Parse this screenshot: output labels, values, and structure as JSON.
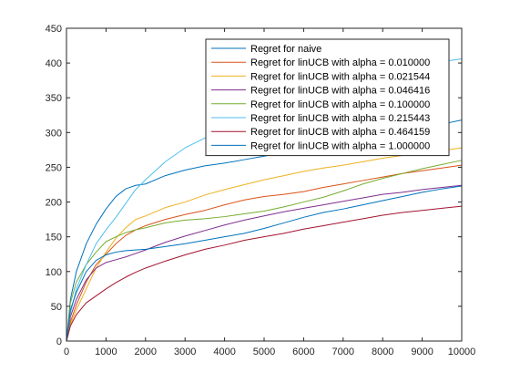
{
  "chart_data": {
    "type": "line",
    "title": "",
    "xlabel": "",
    "ylabel": "",
    "xlim": [
      0,
      10000
    ],
    "ylim": [
      0,
      450
    ],
    "xticks": [
      0,
      1000,
      2000,
      3000,
      4000,
      5000,
      6000,
      7000,
      8000,
      9000,
      10000
    ],
    "xtick_labels": [
      "0",
      "1000",
      "2000",
      "3000",
      "4000",
      "5000",
      "6000",
      "7000",
      "8000",
      "9000",
      "10000"
    ],
    "yticks": [
      0,
      50,
      100,
      150,
      200,
      250,
      300,
      350,
      400,
      450
    ],
    "ytick_labels": [
      "0",
      "50",
      "100",
      "150",
      "200",
      "250",
      "300",
      "350",
      "400",
      "450"
    ],
    "grid": false,
    "legend_position": "top-right",
    "x": [
      0,
      100,
      250,
      500,
      750,
      1000,
      1250,
      1500,
      1750,
      2000,
      2500,
      3000,
      3500,
      4000,
      4500,
      5000,
      5500,
      6000,
      6500,
      7000,
      7500,
      8000,
      8500,
      9000,
      9500,
      10000
    ],
    "series": [
      {
        "name": "Regret for naive",
        "color": "#0072bd",
        "values": [
          0,
          60,
          100,
          140,
          168,
          190,
          208,
          219,
          224,
          226,
          238,
          246,
          252,
          256,
          261,
          266,
          271,
          276,
          281,
          286,
          291,
          296,
          301,
          306,
          312,
          318
        ]
      },
      {
        "name": "Regret for linUCB with alpha = 0.010000",
        "color": "#d95319",
        "values": [
          0,
          28,
          52,
          85,
          110,
          125,
          140,
          152,
          160,
          166,
          175,
          182,
          188,
          196,
          203,
          208,
          211,
          215,
          221,
          226,
          231,
          236,
          241,
          245,
          249,
          253
        ]
      },
      {
        "name": "Regret for linUCB with alpha = 0.021544",
        "color": "#edb120",
        "values": [
          0,
          24,
          45,
          75,
          105,
          128,
          148,
          163,
          175,
          180,
          192,
          200,
          210,
          218,
          225,
          232,
          238,
          244,
          249,
          253,
          258,
          263,
          267,
          271,
          274,
          278
        ]
      },
      {
        "name": "Regret for linUCB with alpha = 0.046416",
        "color": "#7e2f8e",
        "values": [
          0,
          35,
          60,
          88,
          105,
          113,
          117,
          121,
          126,
          131,
          142,
          151,
          159,
          167,
          174,
          180,
          186,
          191,
          196,
          201,
          206,
          211,
          214,
          218,
          221,
          224
        ]
      },
      {
        "name": "Regret for linUCB with alpha = 0.100000",
        "color": "#77ac30",
        "values": [
          0,
          55,
          85,
          110,
          128,
          143,
          150,
          156,
          160,
          163,
          170,
          174,
          176,
          179,
          183,
          187,
          193,
          200,
          207,
          216,
          226,
          234,
          241,
          248,
          254,
          260
        ]
      },
      {
        "name": "Regret for linUCB with alpha = 0.215443",
        "color": "#4dbeee",
        "values": [
          0,
          40,
          75,
          110,
          140,
          160,
          178,
          198,
          218,
          232,
          258,
          278,
          292,
          306,
          318,
          328,
          340,
          350,
          358,
          368,
          375,
          383,
          390,
          396,
          402,
          406
        ]
      },
      {
        "name": "Regret for linUCB with alpha = 0.464159",
        "color": "#a2142f",
        "values": [
          0,
          22,
          38,
          55,
          65,
          75,
          84,
          92,
          99,
          105,
          115,
          124,
          132,
          138,
          145,
          150,
          155,
          161,
          166,
          171,
          176,
          181,
          185,
          188,
          191,
          194
        ]
      },
      {
        "name": "Regret for linUCB with alpha = 1.000000",
        "color": "#0072bd",
        "values": [
          0,
          45,
          70,
          100,
          116,
          124,
          128,
          130,
          131,
          132,
          136,
          140,
          145,
          150,
          155,
          162,
          170,
          178,
          185,
          190,
          196,
          202,
          208,
          214,
          219,
          223
        ]
      }
    ]
  }
}
